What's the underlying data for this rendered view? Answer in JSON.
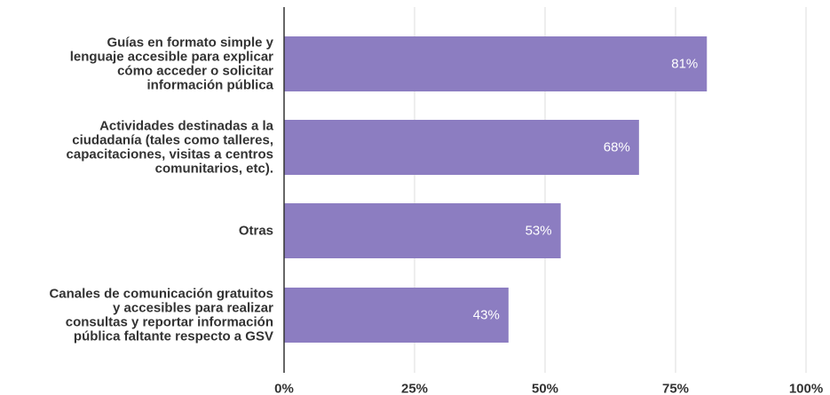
{
  "chart_data": {
    "type": "bar",
    "orientation": "horizontal",
    "categories": [
      [
        "Guías en formato simple y",
        "lenguaje accesible para explicar",
        "cómo acceder o solicitar",
        "información pública"
      ],
      [
        "Actividades destinadas a la",
        "ciudadanía (tales como talleres,",
        "capacitaciones, visitas a centros",
        "comunitarios, etc)."
      ],
      [
        "Otras"
      ],
      [
        "Canales de comunicación gratuitos",
        "y accesibles para realizar",
        "consultas y reportar información",
        "pública faltante respecto a GSV"
      ]
    ],
    "values": [
      81,
      68,
      53,
      43
    ],
    "data_labels": [
      "81%",
      "68%",
      "53%",
      "43%"
    ],
    "xlim": [
      0,
      100
    ],
    "xticks": [
      0,
      25,
      50,
      75,
      100
    ],
    "xtick_labels": [
      "0%",
      "25%",
      "50%",
      "75%",
      "100%"
    ],
    "grid": true,
    "legend": "none",
    "colors": {
      "bar": "#8c7dc1",
      "text": "#333333",
      "data_label": "#ffffff",
      "grid": "#dddddd"
    }
  }
}
